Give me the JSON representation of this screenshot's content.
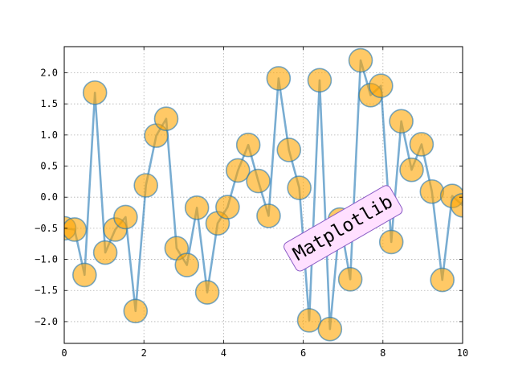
{
  "chart_data": {
    "type": "line",
    "title": "",
    "xlabel": "",
    "ylabel": "",
    "xlim": [
      0,
      10
    ],
    "ylim": [
      -2.35,
      2.42
    ],
    "x_ticks": [
      0,
      2,
      4,
      6,
      8,
      10
    ],
    "y_ticks": [
      -2.0,
      -1.5,
      -1.0,
      -0.5,
      0.0,
      0.5,
      1.0,
      1.5,
      2.0
    ],
    "x_tick_labels": [
      "0",
      "2",
      "4",
      "6",
      "8",
      "10"
    ],
    "y_tick_labels": [
      "−2.0",
      "−1.5",
      "−1.0",
      "−0.5",
      "0.0",
      "0.5",
      "1.0",
      "1.5",
      "2.0"
    ],
    "grid": true,
    "series": [
      {
        "line_color": "#1f77b4",
        "marker_color": "#ffa500",
        "points": [
          {
            "x": 0.0,
            "y": -0.5
          },
          {
            "x": 0.26,
            "y": -0.52
          },
          {
            "x": 0.51,
            "y": -1.25
          },
          {
            "x": 0.77,
            "y": 1.68
          },
          {
            "x": 1.03,
            "y": -0.89
          },
          {
            "x": 1.28,
            "y": -0.52
          },
          {
            "x": 1.54,
            "y": -0.32
          },
          {
            "x": 1.79,
            "y": -1.83
          },
          {
            "x": 2.05,
            "y": 0.19
          },
          {
            "x": 2.31,
            "y": 0.99
          },
          {
            "x": 2.56,
            "y": 1.26
          },
          {
            "x": 2.82,
            "y": -0.82
          },
          {
            "x": 3.08,
            "y": -1.09
          },
          {
            "x": 3.33,
            "y": -0.17
          },
          {
            "x": 3.59,
            "y": -1.53
          },
          {
            "x": 3.85,
            "y": -0.42
          },
          {
            "x": 4.1,
            "y": -0.16
          },
          {
            "x": 4.36,
            "y": 0.43
          },
          {
            "x": 4.62,
            "y": 0.84
          },
          {
            "x": 4.87,
            "y": 0.26
          },
          {
            "x": 5.13,
            "y": -0.3
          },
          {
            "x": 5.38,
            "y": 1.91
          },
          {
            "x": 5.64,
            "y": 0.76
          },
          {
            "x": 5.9,
            "y": 0.15
          },
          {
            "x": 6.15,
            "y": -1.98
          },
          {
            "x": 6.41,
            "y": 1.88
          },
          {
            "x": 6.67,
            "y": -2.12
          },
          {
            "x": 6.92,
            "y": -0.36
          },
          {
            "x": 7.18,
            "y": -1.32
          },
          {
            "x": 7.44,
            "y": 2.2
          },
          {
            "x": 7.69,
            "y": 1.64
          },
          {
            "x": 7.95,
            "y": 1.79
          },
          {
            "x": 8.21,
            "y": -0.72
          },
          {
            "x": 8.46,
            "y": 1.22
          },
          {
            "x": 8.72,
            "y": 0.44
          },
          {
            "x": 8.97,
            "y": 0.85
          },
          {
            "x": 9.23,
            "y": 0.09
          },
          {
            "x": 9.49,
            "y": -1.33
          },
          {
            "x": 9.74,
            "y": 0.02
          },
          {
            "x": 10.0,
            "y": -0.13
          }
        ]
      }
    ],
    "annotation": {
      "text": "Matplotlib",
      "x": 7.0,
      "y": -0.5,
      "rotation_deg": -30,
      "box_fill": "#ffe0ff",
      "box_edge": "#8a5cc6"
    }
  }
}
